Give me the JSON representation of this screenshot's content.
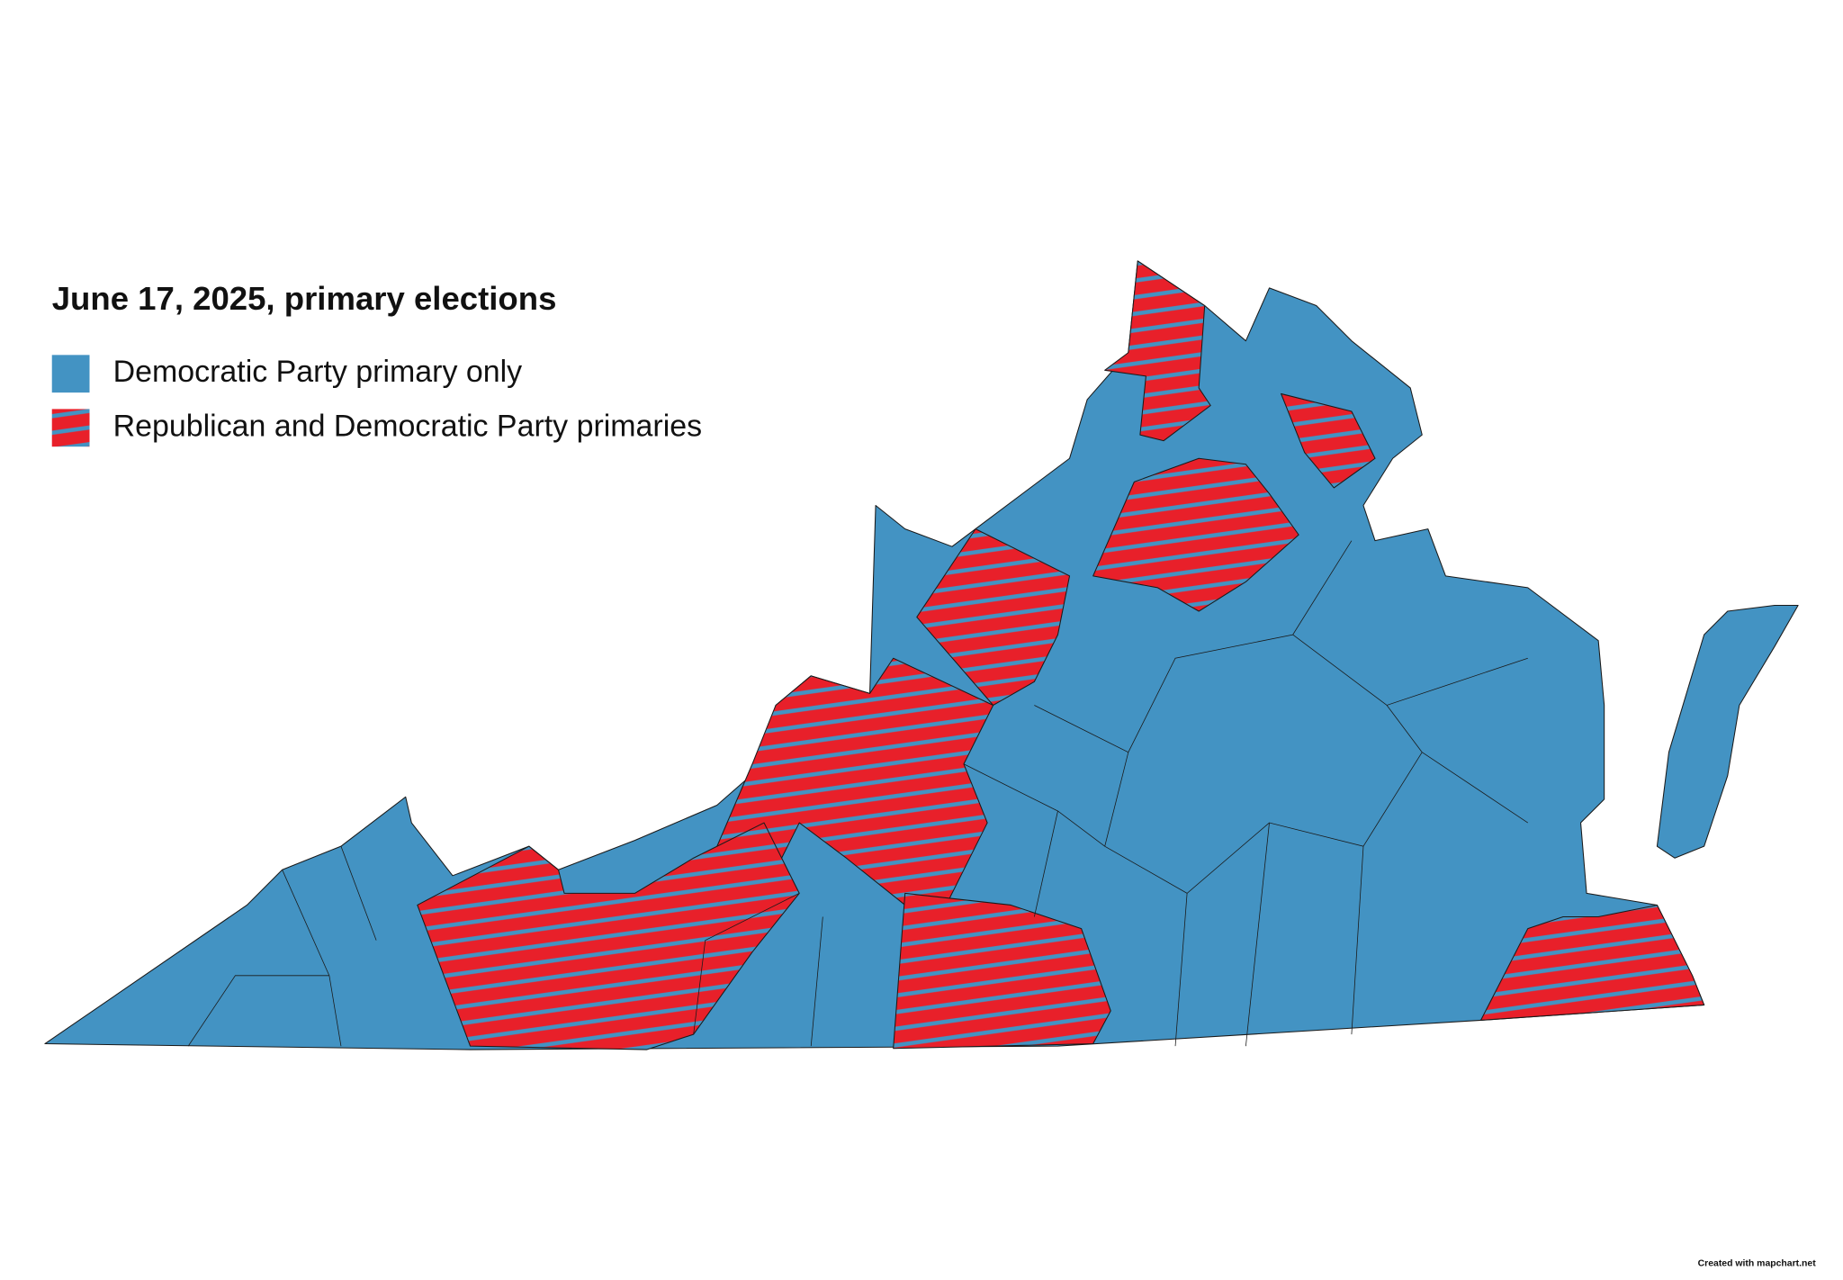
{
  "title": "June 17, 2025, primary elections",
  "legend": [
    {
      "label": "Democratic Party primary only",
      "color": "#4393c3"
    },
    {
      "label": "Republican and Democratic Party primaries",
      "color": "#e8202a"
    }
  ],
  "credit": "Created with mapchart.net"
}
